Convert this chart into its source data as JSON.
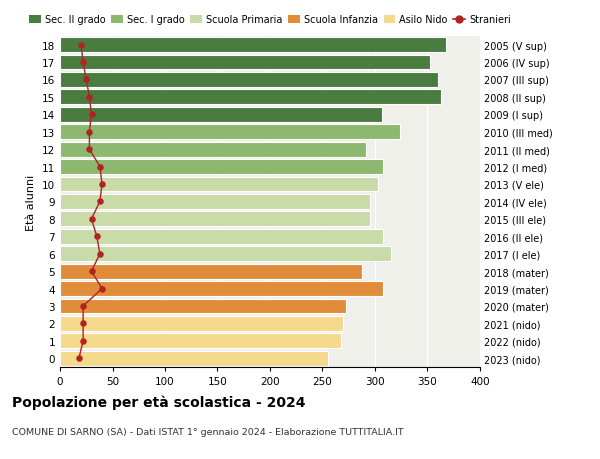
{
  "ages": [
    0,
    1,
    2,
    3,
    4,
    5,
    6,
    7,
    8,
    9,
    10,
    11,
    12,
    13,
    14,
    15,
    16,
    17,
    18
  ],
  "right_labels": [
    "2023 (nido)",
    "2022 (nido)",
    "2021 (nido)",
    "2020 (mater)",
    "2019 (mater)",
    "2018 (mater)",
    "2017 (I ele)",
    "2016 (II ele)",
    "2015 (III ele)",
    "2014 (IV ele)",
    "2013 (V ele)",
    "2012 (I med)",
    "2011 (II med)",
    "2010 (III med)",
    "2009 (I sup)",
    "2008 (II sup)",
    "2007 (III sup)",
    "2006 (IV sup)",
    "2005 (V sup)"
  ],
  "bar_values": [
    255,
    268,
    270,
    272,
    308,
    288,
    315,
    308,
    295,
    295,
    303,
    308,
    291,
    324,
    307,
    363,
    360,
    352,
    368
  ],
  "stranieri": [
    18,
    22,
    22,
    22,
    40,
    30,
    38,
    35,
    30,
    38,
    40,
    38,
    28,
    28,
    30,
    28,
    25,
    22,
    20
  ],
  "bar_colors": [
    "#f5d98c",
    "#f5d98c",
    "#f5d98c",
    "#e08c3a",
    "#e08c3a",
    "#e08c3a",
    "#c8dba8",
    "#c8dba8",
    "#c8dba8",
    "#c8dba8",
    "#c8dba8",
    "#8db870",
    "#8db870",
    "#8db870",
    "#4a7c40",
    "#4a7c40",
    "#4a7c40",
    "#4a7c40",
    "#4a7c40"
  ],
  "legend_labels": [
    "Sec. II grado",
    "Sec. I grado",
    "Scuola Primaria",
    "Scuola Infanzia",
    "Asilo Nido",
    "Stranieri"
  ],
  "legend_colors": [
    "#4a7c40",
    "#8db870",
    "#c8dba8",
    "#e08c3a",
    "#f5d98c",
    "#b22222"
  ],
  "ylabel_left": "Età alunni",
  "title": "Popolazione per età scolastica - 2024",
  "subtitle": "COMUNE DI SARNO (SA) - Dati ISTAT 1° gennaio 2024 - Elaborazione TUTTITALIA.IT",
  "xlim": [
    0,
    400
  ],
  "xticks": [
    0,
    50,
    100,
    150,
    200,
    250,
    300,
    350,
    400
  ],
  "stranieri_color": "#b22222",
  "bg_color": "#f0f0eb"
}
